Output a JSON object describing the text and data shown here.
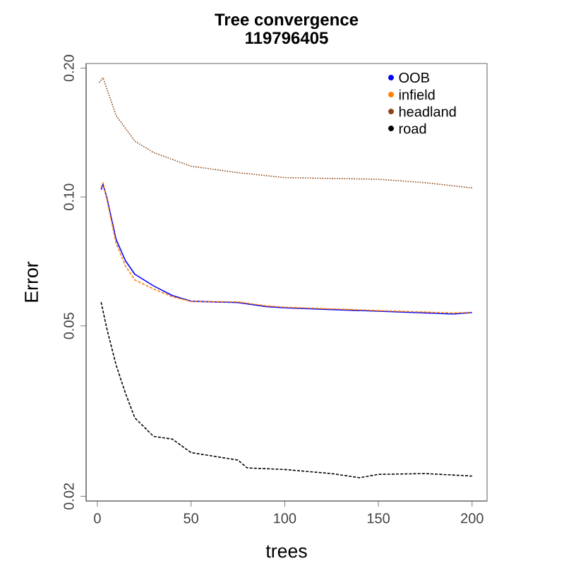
{
  "chart_data": {
    "type": "line",
    "title": "Tree convergence",
    "subtitle": "119796405",
    "xlabel": "trees",
    "ylabel": "Error",
    "log": "y",
    "xlim": [
      -6,
      208
    ],
    "ylim": [
      0.0195,
      0.205
    ],
    "xticks": [
      0,
      50,
      100,
      150,
      200
    ],
    "yticks": [
      0.02,
      0.05,
      {
        "value": 0.1,
        "label": "0.10"
      },
      {
        "value": 0.2,
        "label": "0.20"
      }
    ],
    "legend": "top right",
    "grid": false,
    "series": [
      {
        "name": "OOB",
        "color": "#0000ff",
        "line_style": "solid",
        "x": [
          2,
          3,
          5,
          10,
          15,
          20,
          30,
          40,
          50,
          75,
          90,
          100,
          150,
          190,
          200
        ],
        "values": [
          0.104,
          0.107,
          0.1,
          0.0796,
          0.071,
          0.066,
          0.062,
          0.0589,
          0.0571,
          0.0567,
          0.0555,
          0.0551,
          0.0541,
          0.0533,
          0.0537
        ]
      },
      {
        "name": "infield",
        "color": "#ff7f00",
        "line_style": "dashed",
        "x": [
          2,
          3,
          5,
          10,
          15,
          20,
          30,
          40,
          50,
          75,
          90,
          100,
          150,
          190,
          200
        ],
        "values": [
          0.105,
          0.108,
          0.099,
          0.078,
          0.069,
          0.064,
          0.061,
          0.0585,
          0.057,
          0.0569,
          0.0557,
          0.0553,
          0.0543,
          0.0536,
          0.0538
        ]
      },
      {
        "name": "headland",
        "color": "#8b4513",
        "line_style": "dotted",
        "x": [
          1,
          3,
          10,
          20,
          30,
          50,
          75,
          100,
          150,
          175,
          200
        ],
        "values": [
          0.185,
          0.19,
          0.155,
          0.135,
          0.127,
          0.118,
          0.114,
          0.111,
          0.11,
          0.108,
          0.105
        ]
      },
      {
        "name": "road",
        "color": "#000000",
        "line_style": "dashed",
        "x": [
          2,
          5,
          10,
          15,
          20,
          30,
          40,
          50,
          75,
          80,
          100,
          125,
          140,
          150,
          175,
          200
        ],
        "values": [
          0.0568,
          0.0494,
          0.0405,
          0.0348,
          0.0305,
          0.0276,
          0.0272,
          0.0253,
          0.0243,
          0.0233,
          0.0231,
          0.0226,
          0.0221,
          0.0225,
          0.0226,
          0.0223
        ]
      }
    ]
  }
}
